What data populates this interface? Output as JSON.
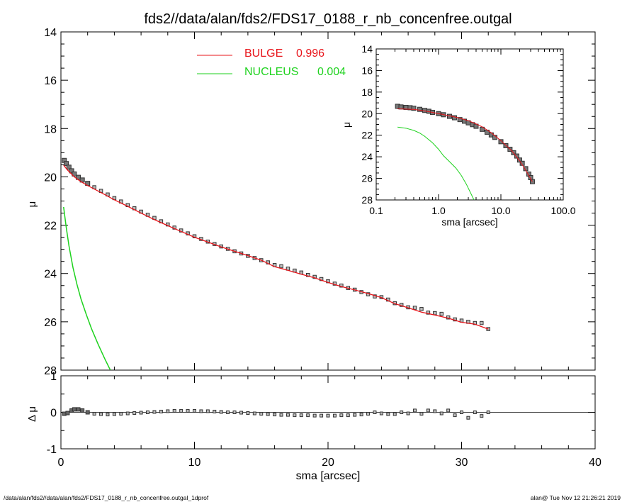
{
  "title": "fds2//data/alan/fds2/FDS17_0188_r_nb_concenfree.outgal",
  "footer": {
    "left": "/data/alan/fds2//data/alan/fds2/FDS17_0188_r_nb_concenfree.outgal_1dprof",
    "right": "alan@  Tue Nov 12 21:26:21 2019"
  },
  "colors": {
    "bulge": "#e8141a",
    "nucleus": "#1ed21e",
    "data": "#555555"
  },
  "chart_data": [
    {
      "type": "line",
      "panel": "main",
      "xlabel": "sma [arcsec]",
      "ylabel": "μ",
      "xlim": [
        0,
        40
      ],
      "ylim": [
        28,
        14
      ],
      "x_ticks": [
        "0",
        "10",
        "20",
        "30",
        "40"
      ],
      "y_ticks": [
        "14",
        "16",
        "18",
        "20",
        "22",
        "24",
        "26",
        "28"
      ],
      "legend": [
        {
          "name": "BULGE",
          "value": "0.996",
          "color": "#e8141a"
        },
        {
          "name": "NUCLEUS",
          "value": "0.004",
          "color": "#1ed21e"
        }
      ],
      "legend_position": "top-center",
      "data_points": {
        "x": [
          0.25,
          0.4,
          0.6,
          0.8,
          1.0,
          1.3,
          1.6,
          2.0,
          2.5,
          3.0,
          3.5,
          4.0,
          4.5,
          5.0,
          5.5,
          6.0,
          6.5,
          7.0,
          7.5,
          8.0,
          8.5,
          9.0,
          9.5,
          10.0,
          10.5,
          11.0,
          11.5,
          12.0,
          12.5,
          13.0,
          13.5,
          14.0,
          14.5,
          15.0,
          15.5,
          16.0,
          16.5,
          17.0,
          17.5,
          18.0,
          18.5,
          19.0,
          19.5,
          20.0,
          20.5,
          21.0,
          21.5,
          22.0,
          22.5,
          23.0,
          23.5,
          24.0,
          24.5,
          25.0,
          25.5,
          26.0,
          26.5,
          27.0,
          27.5,
          28.0,
          28.5,
          29.0,
          29.5,
          30.0,
          30.5,
          31.0,
          31.5,
          32.0
        ],
        "y": [
          19.32,
          19.45,
          19.6,
          19.75,
          19.88,
          20.02,
          20.13,
          20.27,
          20.43,
          20.58,
          20.73,
          20.88,
          21.02,
          21.17,
          21.3,
          21.44,
          21.57,
          21.7,
          21.84,
          21.97,
          22.1,
          22.22,
          22.34,
          22.46,
          22.57,
          22.68,
          22.78,
          22.88,
          22.98,
          23.08,
          23.17,
          23.27,
          23.36,
          23.45,
          23.54,
          23.65,
          23.7,
          23.8,
          23.88,
          23.96,
          24.06,
          24.14,
          24.23,
          24.32,
          24.42,
          24.5,
          24.6,
          24.67,
          24.77,
          24.86,
          24.95,
          24.98,
          25.08,
          25.23,
          25.3,
          25.4,
          25.42,
          25.47,
          25.62,
          25.64,
          25.67,
          25.82,
          25.9,
          25.95,
          26.0,
          26.05,
          26.05,
          26.3
        ]
      },
      "bulge": {
        "x": [
          0.2,
          0.5,
          1.0,
          1.5,
          2.0,
          3.0,
          4.0,
          5.0,
          6.0,
          7.0,
          8.0,
          9.0,
          10.0,
          11.0,
          12.0,
          13.0,
          14.0,
          15.0,
          16.0,
          17.0,
          18.0,
          19.0,
          20.0,
          21.0,
          22.0,
          23.0,
          24.0,
          25.0,
          26.0,
          27.0,
          28.0,
          29.0,
          30.0,
          31.0,
          32.0
        ],
        "y": [
          19.52,
          19.72,
          20.0,
          20.2,
          20.36,
          20.65,
          20.95,
          21.22,
          21.5,
          21.77,
          22.02,
          22.26,
          22.5,
          22.7,
          22.9,
          23.08,
          23.26,
          23.45,
          23.72,
          23.87,
          24.03,
          24.18,
          24.37,
          24.54,
          24.68,
          24.83,
          25.0,
          25.25,
          25.42,
          25.6,
          25.72,
          25.85,
          26.02,
          26.1,
          26.3
        ]
      },
      "nucleus": {
        "x": [
          0.2,
          0.4,
          0.6,
          0.9,
          1.2,
          1.5,
          1.9,
          2.3,
          2.8,
          3.3,
          3.7
        ],
        "y": [
          21.25,
          22.1,
          22.85,
          23.75,
          24.45,
          25.05,
          25.7,
          26.3,
          26.95,
          27.55,
          28.0
        ]
      },
      "residual": {
        "ylabel": "Δ μ",
        "ylim": [
          -1,
          1
        ],
        "y_ticks": [
          "1",
          "0",
          "-1"
        ],
        "x": [
          0.25,
          0.5,
          0.8,
          1.0,
          1.3,
          1.6,
          2.0,
          2.5,
          3.0,
          3.5,
          4.0,
          4.5,
          5.0,
          5.5,
          6.0,
          6.5,
          7.0,
          7.5,
          8.0,
          8.5,
          9.0,
          9.5,
          10.0,
          10.5,
          11.0,
          11.5,
          12.0,
          12.5,
          13.0,
          13.5,
          14.0,
          14.5,
          15.0,
          15.5,
          16.0,
          16.5,
          17.0,
          17.5,
          18.0,
          18.5,
          19.0,
          19.5,
          20.0,
          20.5,
          21.0,
          21.5,
          22.0,
          22.5,
          23.0,
          23.5,
          24.0,
          24.5,
          25.0,
          25.5,
          26.0,
          26.5,
          27.0,
          27.5,
          28.0,
          28.5,
          29.0,
          29.5,
          30.0,
          30.5,
          31.0,
          31.5,
          32.0
        ],
        "y": [
          -0.04,
          -0.02,
          0.05,
          0.08,
          0.08,
          0.05,
          0.0,
          -0.04,
          -0.05,
          -0.06,
          -0.05,
          -0.04,
          -0.03,
          -0.02,
          -0.01,
          0.0,
          0.01,
          0.02,
          0.03,
          0.04,
          0.04,
          0.04,
          0.04,
          0.03,
          0.03,
          0.02,
          0.01,
          0.0,
          0.0,
          -0.01,
          -0.02,
          -0.03,
          -0.04,
          -0.05,
          -0.06,
          -0.07,
          -0.07,
          -0.08,
          -0.08,
          -0.08,
          -0.09,
          -0.09,
          -0.09,
          -0.09,
          -0.08,
          -0.08,
          -0.07,
          -0.06,
          -0.04,
          0.0,
          -0.03,
          -0.05,
          -0.05,
          0.0,
          -0.03,
          0.05,
          -0.04,
          0.05,
          0.03,
          -0.03,
          0.05,
          -0.08,
          0.0,
          -0.15,
          0.0,
          -0.1,
          0.0
        ]
      }
    },
    {
      "type": "line",
      "panel": "inset",
      "xlabel": "sma [arcsec]",
      "ylabel": "μ",
      "xscale": "log",
      "xlim": [
        0.1,
        100
      ],
      "ylim": [
        28,
        14
      ],
      "x_ticks": [
        "0.1",
        "1.0",
        "10.0",
        "100.0"
      ],
      "y_ticks": [
        "14",
        "16",
        "18",
        "20",
        "22",
        "24",
        "26",
        "28"
      ],
      "data_points": {
        "x": [
          0.22,
          0.25,
          0.3,
          0.35,
          0.4,
          0.5,
          0.6,
          0.7,
          0.8,
          1.0,
          1.2,
          1.5,
          1.8,
          2.2,
          2.6,
          3.0,
          3.5,
          4.0,
          5.0,
          6.0,
          7.0,
          8.0,
          10.0,
          12.0,
          14.0,
          16.0,
          18.0,
          20.0,
          22.0,
          25.0,
          28.0,
          30.0,
          32.0
        ],
        "y": [
          19.32,
          19.38,
          19.42,
          19.45,
          19.5,
          19.6,
          19.7,
          19.78,
          19.88,
          20.0,
          20.1,
          20.25,
          20.38,
          20.55,
          20.7,
          20.85,
          21.02,
          21.17,
          21.45,
          21.72,
          21.97,
          22.2,
          22.6,
          22.97,
          23.3,
          23.62,
          23.93,
          24.3,
          24.6,
          25.1,
          25.6,
          25.93,
          26.3
        ]
      },
      "bulge": {
        "x": [
          0.22,
          0.3,
          0.4,
          0.5,
          0.7,
          1.0,
          1.5,
          2.0,
          3.0,
          4.0,
          5.0,
          7.0,
          10.0,
          15.0,
          20.0,
          25.0,
          32.0
        ],
        "y": [
          19.55,
          19.58,
          19.6,
          19.68,
          19.82,
          20.0,
          20.2,
          20.36,
          20.65,
          20.95,
          21.22,
          21.77,
          22.5,
          23.45,
          24.37,
          25.25,
          26.3
        ]
      },
      "nucleus": {
        "x": [
          0.22,
          0.3,
          0.4,
          0.5,
          0.6,
          0.8,
          1.0,
          1.2,
          1.5,
          1.9,
          2.3,
          2.8,
          3.3,
          3.7
        ],
        "y": [
          21.25,
          21.35,
          21.55,
          21.8,
          22.1,
          22.7,
          23.3,
          23.9,
          24.45,
          25.05,
          25.7,
          26.55,
          27.4,
          28.0
        ]
      }
    }
  ]
}
